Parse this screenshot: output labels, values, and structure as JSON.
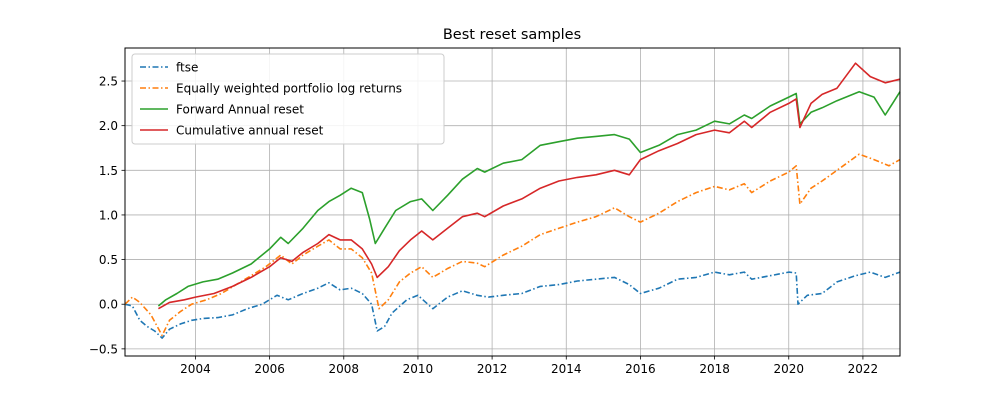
{
  "chart_data": {
    "type": "line",
    "title": "Best reset samples",
    "xlabel": "",
    "ylabel": "",
    "xlim": [
      2002.1,
      2023.0
    ],
    "ylim": [
      -0.58,
      2.87
    ],
    "xticks": [
      2004,
      2006,
      2008,
      2010,
      2012,
      2014,
      2016,
      2018,
      2020,
      2022
    ],
    "xtick_labels": [
      "2004",
      "2006",
      "2008",
      "2010",
      "2012",
      "2014",
      "2016",
      "2018",
      "2020",
      "2022"
    ],
    "yticks": [
      -0.5,
      0.0,
      0.5,
      1.0,
      1.5,
      2.0,
      2.5
    ],
    "ytick_labels": [
      "−0.5",
      "0.0",
      "0.5",
      "1.0",
      "1.5",
      "2.0",
      "2.5"
    ],
    "grid": true,
    "legend_position": "upper-left",
    "series": [
      {
        "name": "ftse",
        "color": "#1f77b4",
        "dash": "dashdot",
        "points": [
          [
            2002.1,
            0.0
          ],
          [
            2002.3,
            -0.02
          ],
          [
            2002.5,
            -0.18
          ],
          [
            2002.7,
            -0.25
          ],
          [
            2002.9,
            -0.3
          ],
          [
            2003.1,
            -0.38
          ],
          [
            2003.3,
            -0.28
          ],
          [
            2003.6,
            -0.22
          ],
          [
            2003.9,
            -0.18
          ],
          [
            2004.2,
            -0.16
          ],
          [
            2004.6,
            -0.15
          ],
          [
            2005.0,
            -0.12
          ],
          [
            2005.4,
            -0.05
          ],
          [
            2005.8,
            0.0
          ],
          [
            2006.2,
            0.1
          ],
          [
            2006.5,
            0.05
          ],
          [
            2006.9,
            0.12
          ],
          [
            2007.3,
            0.18
          ],
          [
            2007.6,
            0.24
          ],
          [
            2007.9,
            0.16
          ],
          [
            2008.2,
            0.18
          ],
          [
            2008.5,
            0.12
          ],
          [
            2008.75,
            0.0
          ],
          [
            2008.9,
            -0.3
          ],
          [
            2009.1,
            -0.25
          ],
          [
            2009.3,
            -0.1
          ],
          [
            2009.7,
            0.05
          ],
          [
            2010.0,
            0.1
          ],
          [
            2010.4,
            -0.05
          ],
          [
            2010.8,
            0.08
          ],
          [
            2011.2,
            0.15
          ],
          [
            2011.6,
            0.1
          ],
          [
            2011.9,
            0.08
          ],
          [
            2012.3,
            0.1
          ],
          [
            2012.8,
            0.12
          ],
          [
            2013.3,
            0.2
          ],
          [
            2013.8,
            0.22
          ],
          [
            2014.3,
            0.26
          ],
          [
            2014.8,
            0.28
          ],
          [
            2015.3,
            0.3
          ],
          [
            2015.7,
            0.22
          ],
          [
            2016.0,
            0.12
          ],
          [
            2016.5,
            0.18
          ],
          [
            2017.0,
            0.28
          ],
          [
            2017.5,
            0.3
          ],
          [
            2018.0,
            0.36
          ],
          [
            2018.4,
            0.33
          ],
          [
            2018.8,
            0.36
          ],
          [
            2019.0,
            0.28
          ],
          [
            2019.5,
            0.32
          ],
          [
            2020.0,
            0.36
          ],
          [
            2020.2,
            0.35
          ],
          [
            2020.25,
            0.0
          ],
          [
            2020.5,
            0.1
          ],
          [
            2020.9,
            0.12
          ],
          [
            2021.3,
            0.25
          ],
          [
            2021.8,
            0.32
          ],
          [
            2022.2,
            0.36
          ],
          [
            2022.6,
            0.3
          ],
          [
            2023.0,
            0.36
          ]
        ]
      },
      {
        "name": "Equally weighted portfolio log returns",
        "color": "#ff7f0e",
        "dash": "dashdot",
        "points": [
          [
            2002.1,
            0.0
          ],
          [
            2002.3,
            0.08
          ],
          [
            2002.5,
            0.02
          ],
          [
            2002.8,
            -0.12
          ],
          [
            2003.1,
            -0.35
          ],
          [
            2003.3,
            -0.18
          ],
          [
            2003.6,
            -0.08
          ],
          [
            2003.9,
            0.0
          ],
          [
            2004.3,
            0.05
          ],
          [
            2004.7,
            0.12
          ],
          [
            2005.1,
            0.22
          ],
          [
            2005.5,
            0.32
          ],
          [
            2005.9,
            0.42
          ],
          [
            2006.3,
            0.55
          ],
          [
            2006.6,
            0.45
          ],
          [
            2006.9,
            0.55
          ],
          [
            2007.3,
            0.65
          ],
          [
            2007.6,
            0.72
          ],
          [
            2007.9,
            0.62
          ],
          [
            2008.2,
            0.62
          ],
          [
            2008.5,
            0.52
          ],
          [
            2008.75,
            0.35
          ],
          [
            2008.95,
            -0.05
          ],
          [
            2009.2,
            0.05
          ],
          [
            2009.5,
            0.25
          ],
          [
            2009.8,
            0.35
          ],
          [
            2010.1,
            0.42
          ],
          [
            2010.4,
            0.3
          ],
          [
            2010.8,
            0.4
          ],
          [
            2011.2,
            0.48
          ],
          [
            2011.6,
            0.46
          ],
          [
            2011.8,
            0.42
          ],
          [
            2012.3,
            0.55
          ],
          [
            2012.8,
            0.65
          ],
          [
            2013.3,
            0.78
          ],
          [
            2013.8,
            0.85
          ],
          [
            2014.3,
            0.92
          ],
          [
            2014.8,
            0.98
          ],
          [
            2015.3,
            1.08
          ],
          [
            2015.7,
            0.98
          ],
          [
            2016.0,
            0.92
          ],
          [
            2016.5,
            1.02
          ],
          [
            2017.0,
            1.15
          ],
          [
            2017.5,
            1.25
          ],
          [
            2018.0,
            1.32
          ],
          [
            2018.4,
            1.28
          ],
          [
            2018.8,
            1.35
          ],
          [
            2019.0,
            1.25
          ],
          [
            2019.5,
            1.38
          ],
          [
            2020.0,
            1.48
          ],
          [
            2020.2,
            1.55
          ],
          [
            2020.3,
            1.12
          ],
          [
            2020.6,
            1.3
          ],
          [
            2020.9,
            1.38
          ],
          [
            2021.3,
            1.5
          ],
          [
            2021.9,
            1.68
          ],
          [
            2022.3,
            1.62
          ],
          [
            2022.7,
            1.55
          ],
          [
            2023.0,
            1.62
          ]
        ]
      },
      {
        "name": "Forward Annual reset",
        "color": "#2ca02c",
        "dash": "solid",
        "points": [
          [
            2003.0,
            -0.02
          ],
          [
            2003.2,
            0.05
          ],
          [
            2003.5,
            0.12
          ],
          [
            2003.8,
            0.2
          ],
          [
            2004.2,
            0.25
          ],
          [
            2004.6,
            0.28
          ],
          [
            2005.0,
            0.35
          ],
          [
            2005.5,
            0.45
          ],
          [
            2006.0,
            0.62
          ],
          [
            2006.3,
            0.75
          ],
          [
            2006.5,
            0.68
          ],
          [
            2006.9,
            0.85
          ],
          [
            2007.3,
            1.05
          ],
          [
            2007.6,
            1.15
          ],
          [
            2007.9,
            1.22
          ],
          [
            2008.2,
            1.3
          ],
          [
            2008.5,
            1.25
          ],
          [
            2008.7,
            0.95
          ],
          [
            2008.85,
            0.68
          ],
          [
            2009.1,
            0.85
          ],
          [
            2009.4,
            1.05
          ],
          [
            2009.8,
            1.15
          ],
          [
            2010.1,
            1.18
          ],
          [
            2010.4,
            1.05
          ],
          [
            2010.8,
            1.22
          ],
          [
            2011.2,
            1.4
          ],
          [
            2011.6,
            1.52
          ],
          [
            2011.8,
            1.48
          ],
          [
            2012.3,
            1.58
          ],
          [
            2012.8,
            1.62
          ],
          [
            2013.3,
            1.78
          ],
          [
            2013.8,
            1.82
          ],
          [
            2014.3,
            1.86
          ],
          [
            2014.8,
            1.88
          ],
          [
            2015.3,
            1.9
          ],
          [
            2015.7,
            1.85
          ],
          [
            2016.0,
            1.7
          ],
          [
            2016.5,
            1.78
          ],
          [
            2017.0,
            1.9
          ],
          [
            2017.5,
            1.95
          ],
          [
            2018.0,
            2.05
          ],
          [
            2018.4,
            2.02
          ],
          [
            2018.8,
            2.12
          ],
          [
            2019.0,
            2.08
          ],
          [
            2019.5,
            2.22
          ],
          [
            2020.0,
            2.32
          ],
          [
            2020.2,
            2.36
          ],
          [
            2020.3,
            2.02
          ],
          [
            2020.6,
            2.15
          ],
          [
            2020.9,
            2.2
          ],
          [
            2021.3,
            2.28
          ],
          [
            2021.9,
            2.38
          ],
          [
            2022.3,
            2.32
          ],
          [
            2022.6,
            2.12
          ],
          [
            2022.8,
            2.25
          ],
          [
            2023.0,
            2.38
          ]
        ]
      },
      {
        "name": "Cumulative annual reset",
        "color": "#d62728",
        "dash": "solid",
        "points": [
          [
            2003.0,
            -0.05
          ],
          [
            2003.3,
            0.02
          ],
          [
            2003.7,
            0.05
          ],
          [
            2004.0,
            0.08
          ],
          [
            2004.5,
            0.12
          ],
          [
            2005.0,
            0.2
          ],
          [
            2005.5,
            0.3
          ],
          [
            2006.0,
            0.42
          ],
          [
            2006.3,
            0.52
          ],
          [
            2006.6,
            0.48
          ],
          [
            2006.9,
            0.58
          ],
          [
            2007.3,
            0.68
          ],
          [
            2007.6,
            0.78
          ],
          [
            2007.9,
            0.72
          ],
          [
            2008.2,
            0.72
          ],
          [
            2008.5,
            0.62
          ],
          [
            2008.75,
            0.45
          ],
          [
            2008.9,
            0.3
          ],
          [
            2009.2,
            0.42
          ],
          [
            2009.5,
            0.6
          ],
          [
            2009.8,
            0.72
          ],
          [
            2010.1,
            0.82
          ],
          [
            2010.4,
            0.72
          ],
          [
            2010.8,
            0.85
          ],
          [
            2011.2,
            0.98
          ],
          [
            2011.6,
            1.02
          ],
          [
            2011.8,
            0.98
          ],
          [
            2012.3,
            1.1
          ],
          [
            2012.8,
            1.18
          ],
          [
            2013.3,
            1.3
          ],
          [
            2013.8,
            1.38
          ],
          [
            2014.3,
            1.42
          ],
          [
            2014.8,
            1.45
          ],
          [
            2015.3,
            1.5
          ],
          [
            2015.7,
            1.45
          ],
          [
            2016.0,
            1.62
          ],
          [
            2016.5,
            1.72
          ],
          [
            2017.0,
            1.8
          ],
          [
            2017.5,
            1.9
          ],
          [
            2018.0,
            1.95
          ],
          [
            2018.4,
            1.92
          ],
          [
            2018.8,
            2.05
          ],
          [
            2019.0,
            1.98
          ],
          [
            2019.5,
            2.15
          ],
          [
            2020.0,
            2.25
          ],
          [
            2020.2,
            2.3
          ],
          [
            2020.3,
            1.98
          ],
          [
            2020.6,
            2.25
          ],
          [
            2020.9,
            2.35
          ],
          [
            2021.3,
            2.42
          ],
          [
            2021.8,
            2.7
          ],
          [
            2022.2,
            2.55
          ],
          [
            2022.6,
            2.48
          ],
          [
            2023.0,
            2.52
          ]
        ]
      }
    ]
  }
}
